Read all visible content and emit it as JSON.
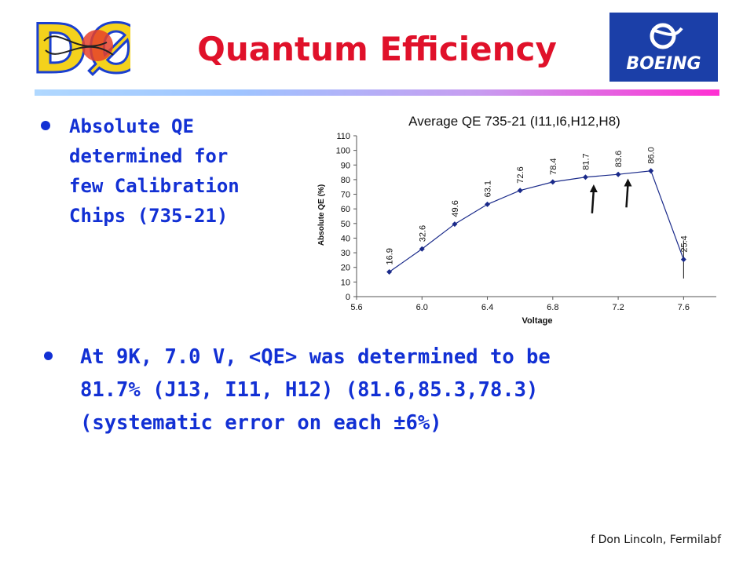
{
  "slide": {
    "title": "Quantum Efficiency",
    "bullet1": "Absolute QE\ndetermined for\nfew Calibration\nChips (735-21)",
    "bullet2": "At 9K, 7.0 V, <QE> was determined to be\n81.7% (J13, I11, H12) (81.6,85.3,78.3)\n(systematic error on each ±6%)",
    "footer": "f Don Lincoln, Fermilabf",
    "logo_left_text": "DØ",
    "logo_right_text": "BOEING"
  },
  "colors": {
    "title": "#e0112a",
    "text": "#1230d4",
    "series": "#1a2a8a",
    "logo_boeing_bg": "#1b3fa8"
  },
  "chart_data": {
    "type": "line",
    "title": "Average QE 735-21 (I11,I6,H12,H8)",
    "xlabel": "Voltage",
    "ylabel": "Absolute QE (%)",
    "xlim": [
      5.6,
      7.8
    ],
    "ylim": [
      0,
      110
    ],
    "xticks": [
      "5.6",
      "6.0",
      "6.4",
      "6.8",
      "7.2",
      "7.6"
    ],
    "yticks": [
      "0",
      "10",
      "20",
      "30",
      "40",
      "50",
      "60",
      "70",
      "80",
      "90",
      "100",
      "110"
    ],
    "x": [
      5.8,
      6.0,
      6.2,
      6.4,
      6.6,
      6.8,
      7.0,
      7.2,
      7.4,
      7.6
    ],
    "y": [
      16.9,
      32.6,
      49.6,
      63.1,
      72.6,
      78.4,
      81.7,
      83.6,
      86.0,
      25.4
    ],
    "labels": [
      "16.9",
      "32.6",
      "49.6",
      "63.1",
      "72.6",
      "78.4",
      "81.7",
      "83.6",
      "86.0",
      "25.4"
    ],
    "error_bar_at_last_point": [
      12.4,
      38.4
    ],
    "arrow_annotations_at_x": [
      7.05,
      7.25
    ],
    "grid": false,
    "legend": "none"
  }
}
